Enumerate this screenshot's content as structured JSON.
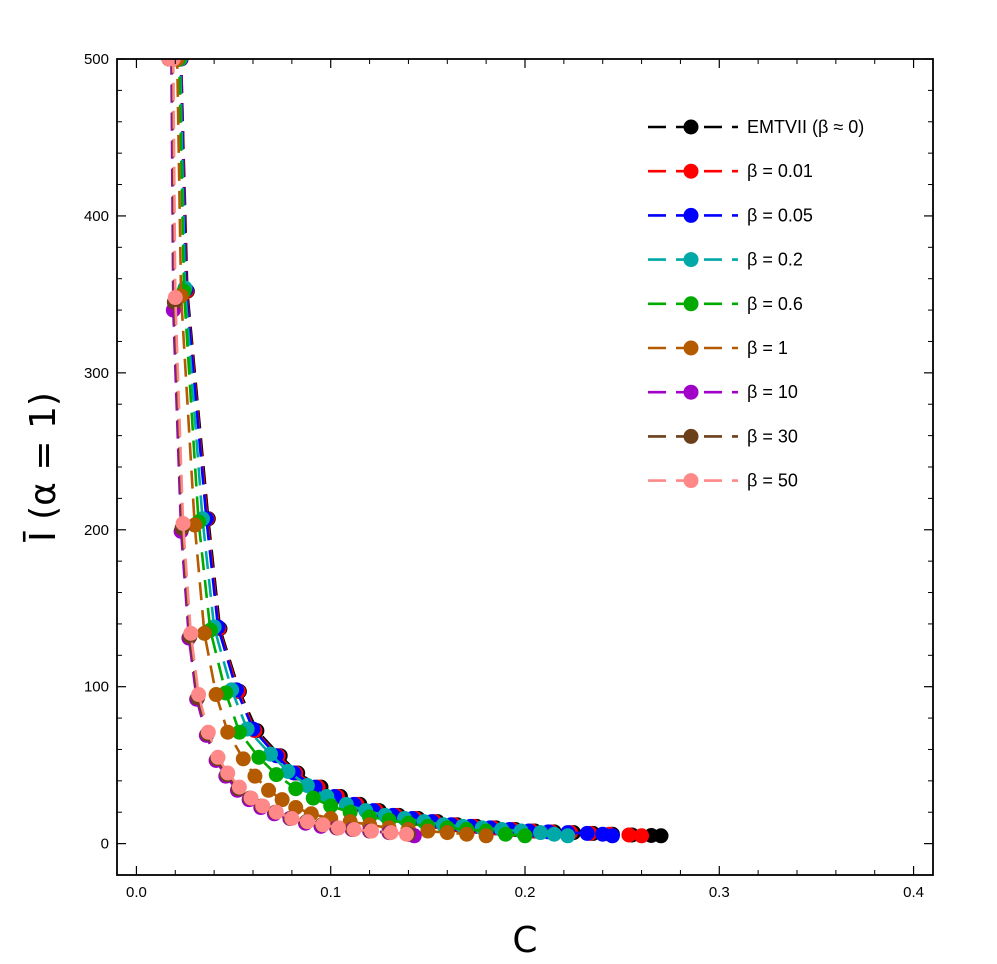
{
  "chart_data": {
    "type": "scatter",
    "xlabel": "C",
    "ylabel": "Ī (α = 1)",
    "xlim": [
      -0.01,
      0.41
    ],
    "ylim": [
      -20,
      500
    ],
    "xticks": [
      0.0,
      0.1,
      0.2,
      0.3,
      0.4
    ],
    "xtick_labels": [
      "0.0",
      "0.1",
      "0.2",
      "0.3",
      "0.4"
    ],
    "yticks": [
      0,
      100,
      200,
      300,
      400,
      500
    ],
    "ytick_labels": [
      "0",
      "100",
      "200",
      "300",
      "400",
      "500"
    ],
    "grid": false,
    "legend_position": "top-right",
    "line_style": "dashed",
    "series": [
      {
        "name": "EMTVII (β ≈ 0)",
        "color": "#000000",
        "x": [
          0.0168,
          0.02,
          0.023,
          0.0262,
          0.037,
          0.043,
          0.053,
          0.062,
          0.074,
          0.083,
          0.095,
          0.105,
          0.115,
          0.125,
          0.135,
          0.145,
          0.155,
          0.165,
          0.175,
          0.185,
          0.195,
          0.205,
          0.215,
          0.225,
          0.235,
          0.245,
          0.255,
          0.265,
          0.27
        ],
        "y": [
          500,
          500,
          500,
          352,
          207,
          137,
          97,
          72,
          56,
          45,
          36,
          30,
          25,
          21,
          18,
          16,
          14,
          12,
          11,
          10,
          9,
          8,
          7.5,
          7,
          6.5,
          6,
          5.5,
          5.2,
          5
        ]
      },
      {
        "name": "β = 0.01",
        "color": "#ff0000",
        "x": [
          0.0168,
          0.02,
          0.023,
          0.0258,
          0.0365,
          0.0425,
          0.0525,
          0.061,
          0.073,
          0.082,
          0.0935,
          0.1035,
          0.1135,
          0.1235,
          0.1335,
          0.1435,
          0.1535,
          0.1635,
          0.1735,
          0.1835,
          0.1935,
          0.2035,
          0.2135,
          0.2235,
          0.2335,
          0.2435,
          0.2535,
          0.26
        ],
        "y": [
          500,
          500,
          500,
          352,
          207,
          137,
          97,
          72,
          56,
          45,
          36,
          30,
          25,
          21,
          18,
          16,
          14,
          12,
          11,
          10,
          9,
          8,
          7.5,
          7,
          6.5,
          6,
          5.5,
          5
        ]
      },
      {
        "name": "β = 0.05",
        "color": "#0000ff",
        "x": [
          0.0168,
          0.02,
          0.0228,
          0.0255,
          0.036,
          0.042,
          0.0515,
          0.06,
          0.072,
          0.081,
          0.092,
          0.102,
          0.112,
          0.122,
          0.132,
          0.142,
          0.152,
          0.162,
          0.172,
          0.182,
          0.192,
          0.202,
          0.212,
          0.222,
          0.232,
          0.24,
          0.245
        ],
        "y": [
          500,
          500,
          500,
          353,
          207,
          138,
          98,
          73,
          56,
          45,
          36,
          30,
          25,
          21,
          18,
          16,
          14,
          12,
          11,
          10,
          9,
          8,
          7.5,
          7,
          6.5,
          6,
          5
        ]
      },
      {
        "name": "β = 0.2",
        "color": "#00a8a8",
        "x": [
          0.0168,
          0.02,
          0.0225,
          0.025,
          0.034,
          0.04,
          0.049,
          0.057,
          0.069,
          0.078,
          0.088,
          0.098,
          0.108,
          0.118,
          0.128,
          0.138,
          0.148,
          0.158,
          0.168,
          0.178,
          0.188,
          0.198,
          0.208,
          0.215,
          0.222
        ],
        "y": [
          500,
          500,
          500,
          354,
          207,
          138,
          98,
          73,
          57,
          46,
          37,
          30,
          25,
          21,
          18,
          16,
          14,
          12,
          11,
          10,
          9,
          8,
          7,
          6,
          5
        ]
      },
      {
        "name": "β = 0.6",
        "color": "#00aa00",
        "x": [
          0.0168,
          0.02,
          0.022,
          0.0245,
          0.032,
          0.038,
          0.046,
          0.053,
          0.063,
          0.072,
          0.082,
          0.091,
          0.1,
          0.11,
          0.12,
          0.13,
          0.14,
          0.15,
          0.16,
          0.17,
          0.18,
          0.19,
          0.2
        ],
        "y": [
          500,
          500,
          500,
          352,
          205,
          136,
          96,
          71,
          55,
          44,
          35,
          29,
          24,
          20,
          17,
          15,
          13,
          11,
          10,
          9,
          8,
          6,
          5
        ]
      },
      {
        "name": "β = 1",
        "color": "#b45a00",
        "x": [
          0.0168,
          0.02,
          0.021,
          0.023,
          0.03,
          0.035,
          0.041,
          0.047,
          0.055,
          0.061,
          0.068,
          0.075,
          0.082,
          0.09,
          0.1,
          0.11,
          0.12,
          0.13,
          0.14,
          0.15,
          0.16,
          0.17,
          0.18
        ],
        "y": [
          500,
          500,
          500,
          349,
          203,
          134,
          95,
          71,
          54,
          43,
          34,
          28,
          23,
          19,
          16,
          14,
          12,
          10,
          9,
          8,
          7,
          6,
          5
        ]
      },
      {
        "name": "β = 10",
        "color": "#a000c8",
        "x": [
          0.0168,
          0.018,
          0.019,
          0.023,
          0.027,
          0.031,
          0.036,
          0.041,
          0.046,
          0.052,
          0.058,
          0.064,
          0.071,
          0.079,
          0.087,
          0.095,
          0.103,
          0.111,
          0.12,
          0.13,
          0.14,
          0.143
        ],
        "y": [
          500,
          500,
          340,
          199,
          131,
          92,
          69,
          53,
          43,
          34,
          28,
          23,
          19,
          16,
          13,
          11,
          10,
          9,
          8,
          7,
          6,
          5
        ]
      },
      {
        "name": "β = 30",
        "color": "#6b3f1a",
        "x": [
          0.0168,
          0.0185,
          0.0195,
          0.0235,
          0.0275,
          0.0315,
          0.0365,
          0.0415,
          0.0465,
          0.0525,
          0.0585,
          0.0645,
          0.0715,
          0.0795,
          0.0875,
          0.0955,
          0.1035,
          0.1115,
          0.1205,
          0.1305,
          0.14
        ],
        "y": [
          500,
          500,
          345,
          201,
          132,
          93,
          70,
          54,
          44,
          35,
          29,
          24,
          20,
          16,
          14,
          12,
          10,
          9,
          8,
          7,
          6
        ]
      },
      {
        "name": "β = 50",
        "color": "#ff8888",
        "x": [
          0.0168,
          0.019,
          0.02,
          0.024,
          0.028,
          0.032,
          0.037,
          0.042,
          0.047,
          0.053,
          0.059,
          0.065,
          0.072,
          0.08,
          0.088,
          0.096,
          0.104,
          0.112,
          0.121,
          0.131,
          0.139
        ],
        "y": [
          500,
          500,
          348,
          204,
          134,
          95,
          71,
          55,
          45,
          36,
          29,
          24,
          20,
          16,
          14,
          12,
          10,
          9,
          8,
          7,
          6
        ]
      }
    ]
  }
}
